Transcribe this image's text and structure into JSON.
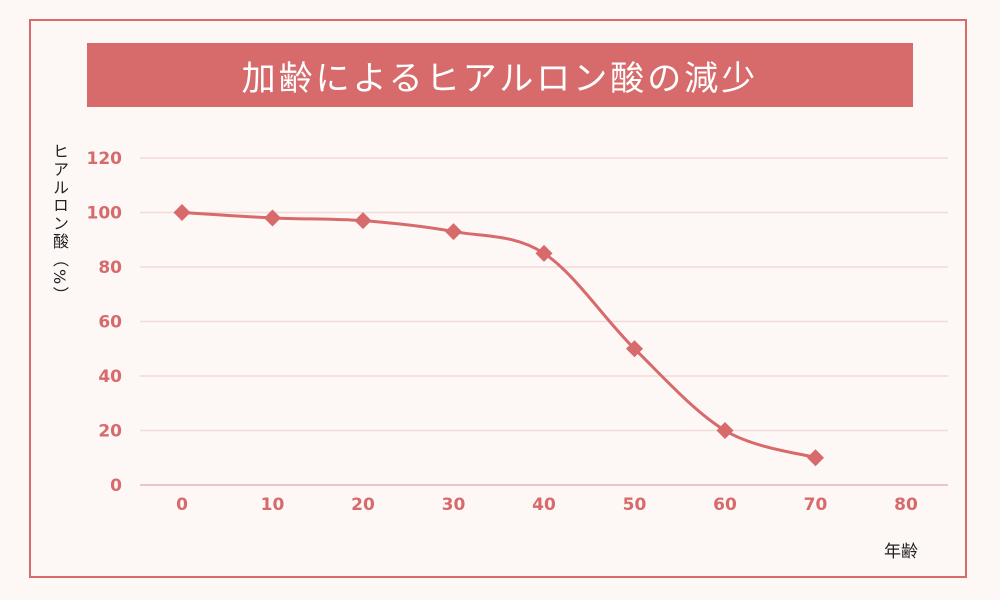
{
  "chart_data": {
    "type": "line",
    "title": "加齢によるヒアルロン酸の減少",
    "xlabel": "年齢",
    "ylabel": "ヒアルロン酸（%）",
    "x": [
      0,
      10,
      20,
      30,
      40,
      50,
      60,
      70
    ],
    "values": [
      100,
      98,
      97,
      93,
      85,
      50,
      20,
      10
    ],
    "xlim": [
      0,
      80
    ],
    "ylim": [
      0,
      120
    ],
    "xticks": [
      "0",
      "10",
      "20",
      "30",
      "40",
      "50",
      "60",
      "70",
      "80"
    ],
    "yticks": [
      "0",
      "20",
      "40",
      "60",
      "80",
      "100",
      "120"
    ],
    "grid": true,
    "marker": "diamond",
    "line_style": "smooth",
    "colors": {
      "accent": "#d76a6b",
      "grid": "#f3d9d8",
      "background": "#fdf7f6"
    }
  }
}
